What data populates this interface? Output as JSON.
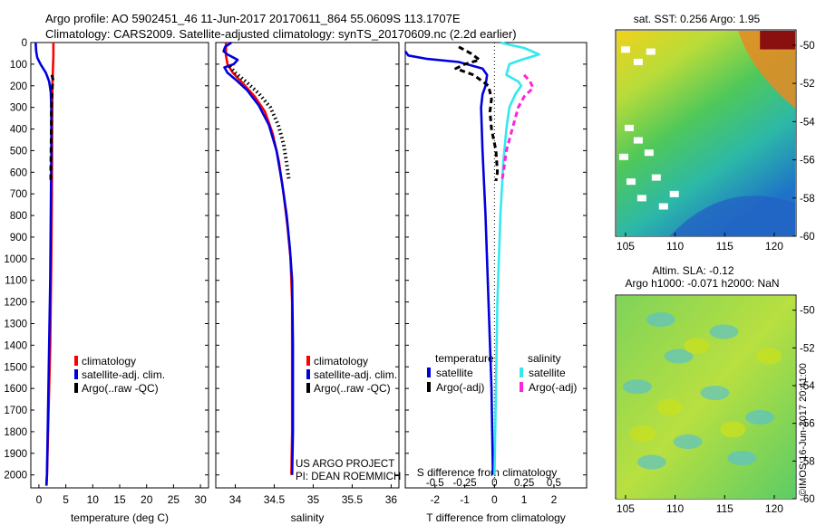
{
  "header": {
    "line1": "Argo profile: AO 5902451_46 11-Jun-2017 20170611_864 55.0609S 113.1707E",
    "line2": "Climatology: CARS2009. Satellite-adjusted climatology: synTS_20170609.nc (2.2d earlier)"
  },
  "colors": {
    "climatology": "#ff0000",
    "satellite": "#0000dd",
    "argo": "#000000",
    "sal_satellite": "#33e8ee",
    "sal_argo": "#ff22dd"
  },
  "chart_data": [
    {
      "id": "temperature",
      "type": "line",
      "xlabel": "temperature (deg C)",
      "xlim": [
        -1.5,
        31.5
      ],
      "ylim": [
        2060,
        0
      ],
      "xticks": [
        0,
        5,
        10,
        15,
        20,
        25,
        30
      ],
      "yticks": [
        0,
        100,
        200,
        300,
        400,
        500,
        600,
        700,
        800,
        900,
        1000,
        1100,
        1200,
        1300,
        1400,
        1500,
        1600,
        1700,
        1800,
        1900,
        2000
      ],
      "series": [
        {
          "name": "climatology",
          "color_key": "climatology",
          "style": "solid",
          "points": [
            [
              2.7,
              0
            ],
            [
              2.7,
              60
            ],
            [
              2.6,
              120
            ],
            [
              2.5,
              200
            ],
            [
              2.45,
              400
            ],
            [
              2.4,
              700
            ],
            [
              2.3,
              1000
            ],
            [
              2.1,
              1400
            ],
            [
              1.8,
              1700
            ],
            [
              1.5,
              2000
            ],
            [
              1.4,
              2050
            ]
          ]
        },
        {
          "name": "satellite-adj. clim.",
          "color_key": "satellite",
          "style": "solid",
          "points": [
            [
              -0.6,
              0
            ],
            [
              -0.5,
              40
            ],
            [
              -0.3,
              70
            ],
            [
              0.3,
              100
            ],
            [
              1.3,
              140
            ],
            [
              1.9,
              180
            ],
            [
              2.2,
              230
            ],
            [
              2.3,
              300
            ],
            [
              2.3,
              500
            ],
            [
              2.2,
              800
            ],
            [
              2.1,
              1100
            ],
            [
              1.9,
              1400
            ],
            [
              1.7,
              1700
            ],
            [
              1.5,
              2000
            ],
            [
              1.4,
              2050
            ]
          ]
        },
        {
          "name": "Argo(..raw -QC)",
          "color_key": "argo",
          "style": "dash",
          "points": [
            [
              2.4,
              150
            ],
            [
              2.6,
              170
            ],
            [
              2.5,
              200
            ],
            [
              2.4,
              260
            ],
            [
              2.3,
              300
            ],
            [
              2.3,
              400
            ],
            [
              2.2,
              600
            ],
            [
              2.2,
              640
            ]
          ]
        }
      ],
      "legend": [
        {
          "label": "climatology",
          "color_key": "climatology"
        },
        {
          "label": "satellite-adj. clim.",
          "color_key": "satellite"
        },
        {
          "label": "Argo(..raw -QC)",
          "color_key": "argo"
        }
      ]
    },
    {
      "id": "salinity",
      "type": "line",
      "xlabel": "salinity",
      "xlim": [
        33.75,
        36.1
      ],
      "ylim": [
        2060,
        0
      ],
      "xticks": [
        34,
        34.5,
        35,
        35.5,
        36
      ],
      "series": [
        {
          "name": "climatology",
          "color_key": "climatology",
          "style": "solid",
          "points": [
            [
              33.88,
              0
            ],
            [
              33.88,
              60
            ],
            [
              33.9,
              100
            ],
            [
              33.97,
              140
            ],
            [
              34.1,
              190
            ],
            [
              34.25,
              250
            ],
            [
              34.38,
              320
            ],
            [
              34.48,
              420
            ],
            [
              34.56,
              550
            ],
            [
              34.62,
              700
            ],
            [
              34.67,
              850
            ],
            [
              34.71,
              1000
            ],
            [
              34.73,
              1200
            ],
            [
              34.73,
              1500
            ],
            [
              34.73,
              1800
            ],
            [
              34.72,
              2000
            ]
          ]
        },
        {
          "name": "satellite-adj. clim.",
          "color_key": "satellite",
          "style": "solid",
          "points": [
            [
              33.95,
              0
            ],
            [
              33.87,
              20
            ],
            [
              33.85,
              40
            ],
            [
              33.9,
              55
            ],
            [
              34.03,
              80
            ],
            [
              33.98,
              100
            ],
            [
              33.86,
              115
            ],
            [
              33.9,
              140
            ],
            [
              34.0,
              170
            ],
            [
              34.15,
              220
            ],
            [
              34.3,
              290
            ],
            [
              34.43,
              380
            ],
            [
              34.53,
              500
            ],
            [
              34.6,
              650
            ],
            [
              34.66,
              800
            ],
            [
              34.7,
              950
            ],
            [
              34.73,
              1100
            ],
            [
              34.74,
              1400
            ],
            [
              34.74,
              1800
            ],
            [
              34.73,
              2000
            ]
          ]
        },
        {
          "name": "Argo(..raw -QC)",
          "color_key": "argo",
          "style": "dot",
          "points": [
            [
              33.93,
              110
            ],
            [
              34.0,
              140
            ],
            [
              34.15,
              185
            ],
            [
              34.3,
              235
            ],
            [
              34.45,
              300
            ],
            [
              34.55,
              380
            ],
            [
              34.62,
              470
            ],
            [
              34.66,
              560
            ],
            [
              34.69,
              640
            ]
          ]
        }
      ],
      "legend": [
        {
          "label": "climatology",
          "color_key": "climatology"
        },
        {
          "label": "satellite-adj. clim.",
          "color_key": "satellite"
        },
        {
          "label": "Argo(..raw -QC)",
          "color_key": "argo"
        }
      ],
      "annotations": [
        "US ARGO PROJECT",
        "PI: DEAN ROEMMICH"
      ]
    },
    {
      "id": "difference",
      "type": "line",
      "xlabel": "T difference from climatology",
      "xlabel_top": "S difference from climatology",
      "xlim": [
        -3,
        3.1
      ],
      "ylim": [
        2060,
        0
      ],
      "xticks": [
        -2,
        -1,
        0,
        1,
        2
      ],
      "sticks_label": [
        "-0.5",
        "-0.25",
        "0",
        "0.25",
        "0.5"
      ],
      "sticks_value": [
        -2,
        -1,
        0,
        1,
        2
      ],
      "series": [
        {
          "name": "temperature satellite",
          "color_key": "satellite",
          "style": "solid",
          "points": [
            [
              -3.0,
              40
            ],
            [
              -2.9,
              60
            ],
            [
              -2.3,
              75
            ],
            [
              -1.2,
              90
            ],
            [
              -0.4,
              120
            ],
            [
              -0.25,
              150
            ],
            [
              -0.3,
              200
            ],
            [
              -0.4,
              240
            ],
            [
              -0.45,
              300
            ],
            [
              -0.4,
              500
            ],
            [
              -0.3,
              800
            ],
            [
              -0.2,
              1200
            ],
            [
              -0.1,
              1600
            ],
            [
              -0.05,
              2000
            ]
          ]
        },
        {
          "name": "temperature Argo(-adj)",
          "color_key": "argo",
          "style": "dash",
          "points": [
            [
              -1.2,
              20
            ],
            [
              -0.8,
              50
            ],
            [
              -0.5,
              80
            ],
            [
              -1.0,
              100
            ],
            [
              -1.3,
              120
            ],
            [
              -0.7,
              150
            ],
            [
              -0.2,
              200
            ],
            [
              -0.1,
              260
            ],
            [
              -0.15,
              320
            ],
            [
              -0.1,
              400
            ],
            [
              0.05,
              500
            ],
            [
              0.1,
              600
            ],
            [
              0.05,
              640
            ]
          ]
        },
        {
          "name": "salinity satellite",
          "color_key": "sal_satellite",
          "style": "solid",
          "points": [
            [
              0.2,
              0
            ],
            [
              0.5,
              10
            ],
            [
              1.0,
              25
            ],
            [
              1.5,
              55
            ],
            [
              0.9,
              80
            ],
            [
              0.5,
              100
            ],
            [
              0.4,
              150
            ],
            [
              0.8,
              180
            ],
            [
              0.9,
              200
            ],
            [
              0.7,
              240
            ],
            [
              0.5,
              300
            ],
            [
              0.4,
              400
            ],
            [
              0.3,
              550
            ],
            [
              0.2,
              800
            ],
            [
              0.1,
              1200
            ],
            [
              0.05,
              1600
            ],
            [
              0.0,
              2000
            ]
          ]
        },
        {
          "name": "salinity Argo(-adj)",
          "color_key": "sal_argo",
          "style": "dash",
          "points": [
            [
              1.0,
              150
            ],
            [
              1.2,
              180
            ],
            [
              1.3,
              210
            ],
            [
              1.0,
              250
            ],
            [
              0.8,
              300
            ],
            [
              0.6,
              400
            ],
            [
              0.4,
              500
            ],
            [
              0.3,
              600
            ],
            [
              0.25,
              640
            ]
          ]
        }
      ],
      "legend_headers": [
        "temperature",
        "salinity"
      ],
      "legend": [
        {
          "label": "satellite",
          "color_key": "satellite",
          "col": 0
        },
        {
          "label": "Argo(-adj)",
          "color_key": "argo",
          "col": 0
        },
        {
          "label": "satellite",
          "color_key": "sal_satellite",
          "col": 1
        },
        {
          "label": "Argo(-adj)",
          "color_key": "sal_argo",
          "col": 1
        }
      ]
    },
    {
      "id": "sst_map",
      "type": "heatmap",
      "title": "sat. SST: 0.256 Argo: 1.95",
      "xticks": [
        105,
        110,
        115,
        120
      ],
      "yticks": [
        -50,
        -52,
        -54,
        -56,
        -58,
        -60
      ],
      "xlim": [
        104,
        122.2
      ],
      "ylim": [
        -60,
        -49.2
      ]
    },
    {
      "id": "sla_map",
      "type": "heatmap",
      "title": "Altim. SLA: -0.12",
      "subtitle": "Argo h1000: -0.071 h2000: NaN",
      "xticks": [
        105,
        110,
        115,
        120
      ],
      "yticks": [
        -50,
        -52,
        -54,
        -56,
        -58,
        -60
      ],
      "xlim": [
        104,
        122.2
      ],
      "ylim": [
        -60,
        -49.2
      ]
    }
  ],
  "footer": {
    "stamp": "©IMOS 16-Jun-2017 20:41:00"
  }
}
